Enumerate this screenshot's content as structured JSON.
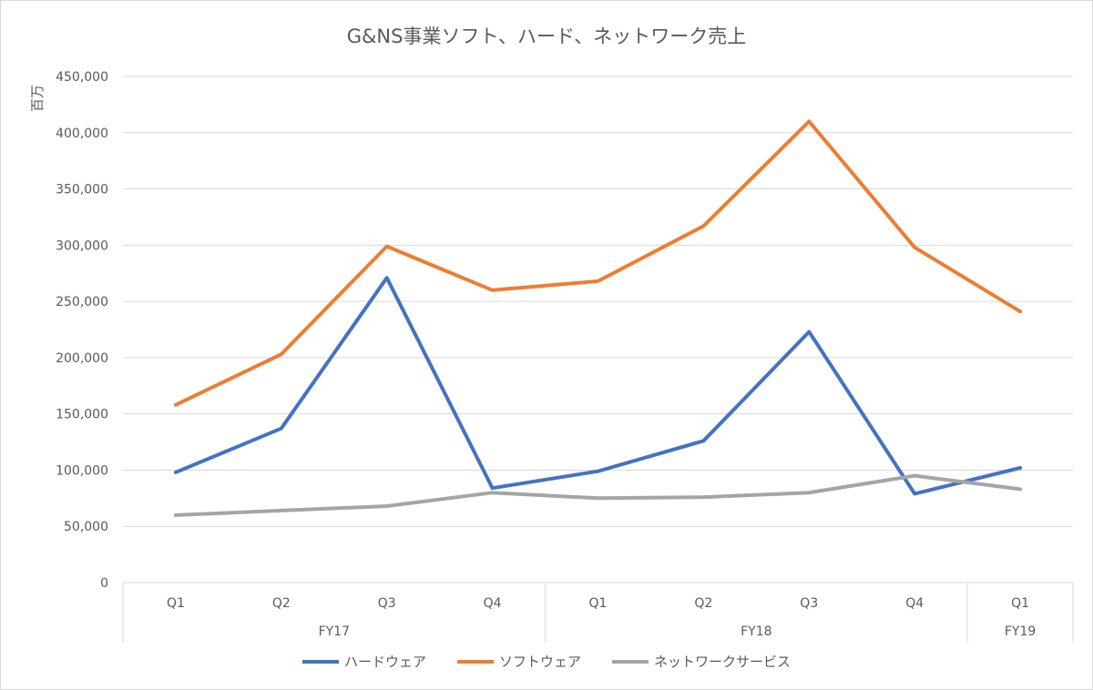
{
  "chart_data": {
    "type": "line",
    "title": "G&NS事業ソフト、ハード、ネットワーク売上",
    "ylabel": "百万",
    "xlabel": "",
    "ylim": [
      0,
      450000
    ],
    "yticks": [
      0,
      50000,
      100000,
      150000,
      200000,
      250000,
      300000,
      350000,
      400000,
      450000
    ],
    "ytick_labels": [
      "0",
      "50,000",
      "100,000",
      "150,000",
      "200,000",
      "250,000",
      "300,000",
      "350,000",
      "400,000",
      "450,000"
    ],
    "grid": true,
    "legend_position": "bottom",
    "categories": [
      "Q1",
      "Q2",
      "Q3",
      "Q4",
      "Q1",
      "Q2",
      "Q3",
      "Q4",
      "Q1"
    ],
    "groups": [
      {
        "label": "FY17",
        "count": 4
      },
      {
        "label": "FY18",
        "count": 4
      },
      {
        "label": "FY19",
        "count": 1
      }
    ],
    "series": [
      {
        "name": "ハードウェア",
        "color": "#4472c4",
        "values": [
          98000,
          137000,
          271000,
          84000,
          99000,
          126000,
          223000,
          79000,
          102000
        ]
      },
      {
        "name": "ソフトウェア",
        "color": "#ed7d31",
        "values": [
          158000,
          203000,
          299000,
          260000,
          268000,
          317000,
          410000,
          298000,
          241000
        ]
      },
      {
        "name": "ネットワークサービス",
        "color": "#a5a5a5",
        "values": [
          60000,
          64000,
          68000,
          80000,
          75000,
          76000,
          80000,
          95000,
          83000
        ]
      }
    ]
  }
}
